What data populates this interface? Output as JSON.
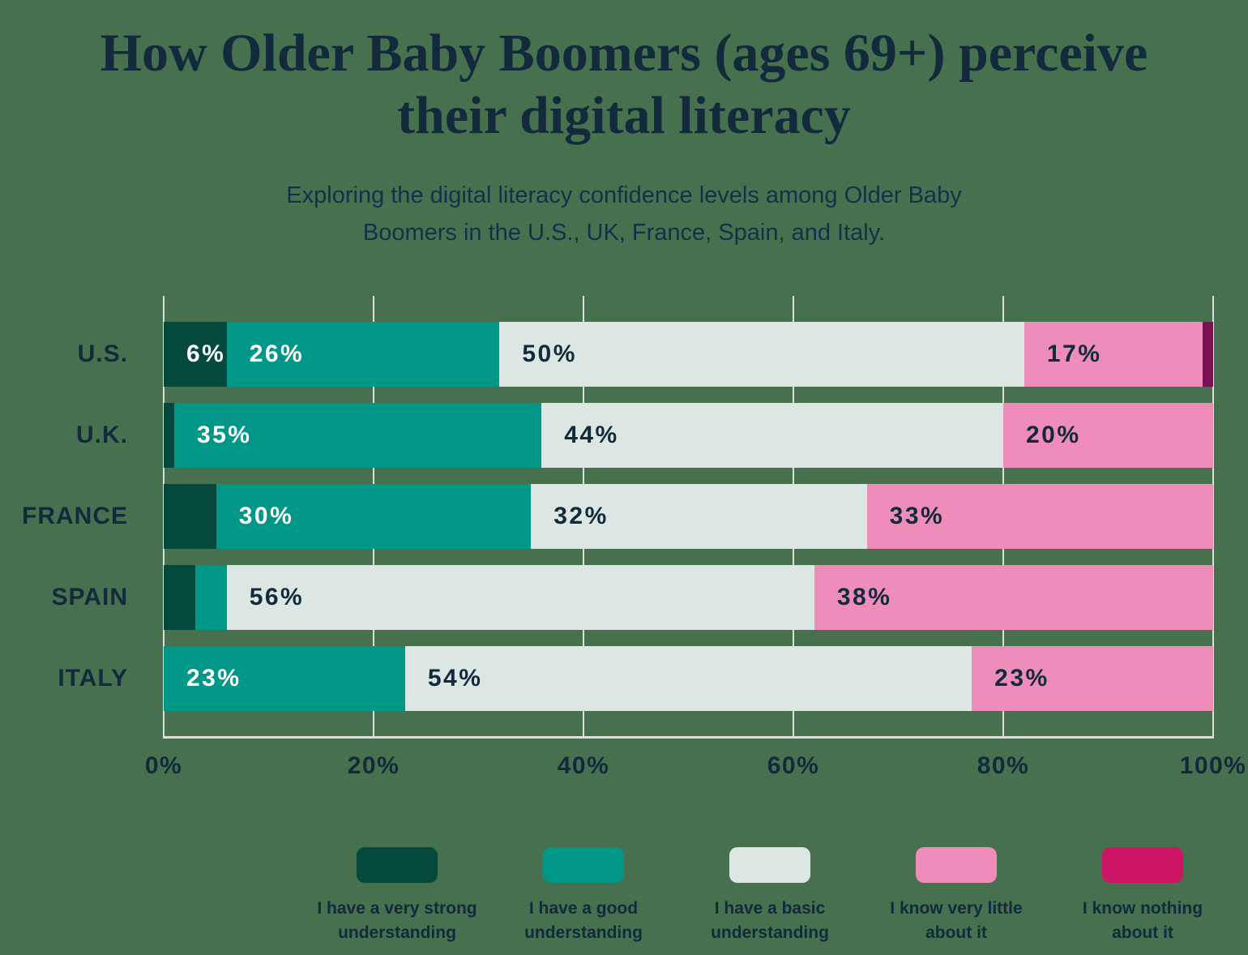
{
  "title": "How Older Baby Boomers (ages 69+) perceive their digital literacy",
  "subtitle": "Exploring the digital literacy confidence levels among Older Baby Boomers in the U.S., UK, France, Spain, and Italy.",
  "colors": {
    "background": "#47704F",
    "text": "#13293C",
    "grid": "#D9E0D9",
    "label_on_dark": "#FFFFFF"
  },
  "chart_data": {
    "type": "bar",
    "orientation": "horizontal",
    "stacked": true,
    "title": "How Older Baby Boomers (ages 69+) perceive their digital literacy",
    "subtitle": "Exploring the digital literacy confidence levels among Older Baby Boomers in the U.S., UK, France, Spain, and Italy.",
    "categories": [
      "U.S.",
      "U.K.",
      "FRANCE",
      "SPAIN",
      "ITALY"
    ],
    "series": [
      {
        "name": "I have a very strong understanding",
        "color": "#05493C",
        "label_color": "#FFFFFF",
        "values": [
          6,
          1,
          5,
          3,
          0
        ]
      },
      {
        "name": "I have a good understanding",
        "color": "#009688",
        "label_color": "#FFFFFF",
        "values": [
          26,
          35,
          30,
          3,
          23
        ]
      },
      {
        "name": "I have a basic understanding",
        "color": "#DCE7E4",
        "label_color": "#13293C",
        "values": [
          50,
          44,
          32,
          56,
          54
        ]
      },
      {
        "name": "I know very little about it",
        "color": "#EE8CBA",
        "label_color": "#13293C",
        "values": [
          17,
          20,
          33,
          38,
          23
        ]
      },
      {
        "name": "I know nothing about it",
        "color": "#CC1566",
        "bar_color_override": "#7A1052",
        "label_color": "#FFFFFF",
        "values": [
          1,
          0,
          0,
          0,
          0
        ]
      }
    ],
    "data_label_suffix": "%",
    "data_label_min_value": 6,
    "x_tick_labels": [
      "0%",
      "20%",
      "40%",
      "60%",
      "80%",
      "100%"
    ],
    "xlim": [
      0,
      100
    ],
    "grid": true,
    "legend_position": "bottom"
  }
}
